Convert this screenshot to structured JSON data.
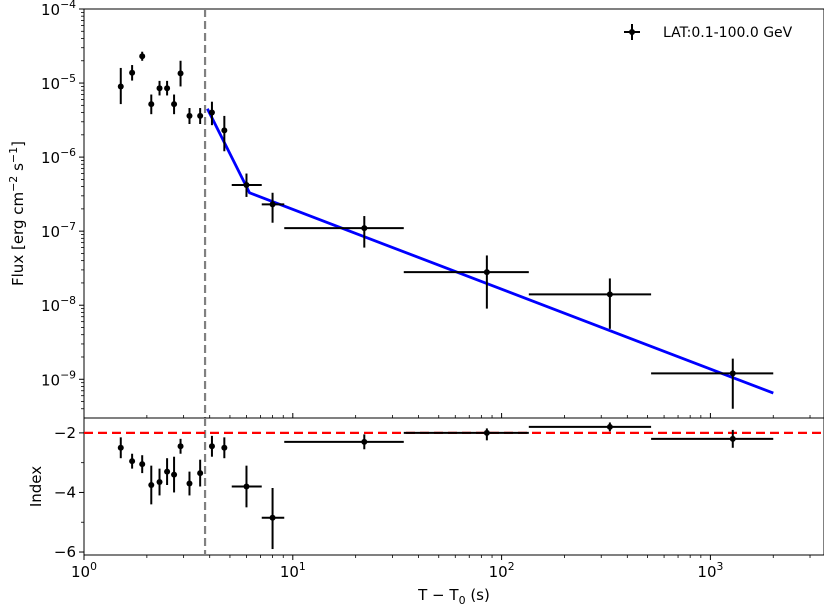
{
  "chart_data": [
    {
      "type": "scatter",
      "panel": "top",
      "ylabel_parts": [
        "Flux [erg cm",
        "−2",
        " s",
        "−1",
        "]"
      ],
      "xscale": "log",
      "yscale": "log",
      "xlim": [
        1,
        3500
      ],
      "ylim": [
        3e-10,
        0.0001
      ],
      "y_tick_labels": [
        {
          "value": 0.0001,
          "base": "10",
          "exp": "−4"
        },
        {
          "value": 1e-05,
          "base": "10",
          "exp": "−5"
        },
        {
          "value": 1e-06,
          "base": "10",
          "exp": "−6"
        },
        {
          "value": 1e-07,
          "base": "10",
          "exp": "−7"
        },
        {
          "value": 1e-08,
          "base": "10",
          "exp": "−8"
        },
        {
          "value": 1e-09,
          "base": "10",
          "exp": "−9"
        }
      ],
      "legend": {
        "label": "LAT:0.1-100.0 GeV",
        "placement": "top-right"
      },
      "vline": {
        "x": 3.8,
        "color": "#808080",
        "style": "dashed"
      },
      "series": [
        {
          "name": "LAT:0.1-100.0 GeV",
          "color": "#000000",
          "points": [
            {
              "x": 1.5,
              "y": 9e-06,
              "ylo": 5.2e-06,
              "yhi": 1.6e-05
            },
            {
              "x": 1.7,
              "y": 1.38e-05,
              "ylo": 1.08e-05,
              "yhi": 1.75e-05
            },
            {
              "x": 1.9,
              "y": 2.3e-05,
              "ylo": 2e-05,
              "yhi": 2.65e-05
            },
            {
              "x": 2.1,
              "y": 5.2e-06,
              "ylo": 3.8e-06,
              "yhi": 7e-06
            },
            {
              "x": 2.3,
              "y": 8.5e-06,
              "ylo": 6.8e-06,
              "yhi": 1.07e-05
            },
            {
              "x": 2.5,
              "y": 8.5e-06,
              "ylo": 6.8e-06,
              "yhi": 1.07e-05
            },
            {
              "x": 2.7,
              "y": 5.2e-06,
              "ylo": 3.8e-06,
              "yhi": 7e-06
            },
            {
              "x": 2.9,
              "y": 1.35e-05,
              "ylo": 9e-06,
              "yhi": 2e-05
            },
            {
              "x": 3.2,
              "y": 3.6e-06,
              "ylo": 2.8e-06,
              "yhi": 4.6e-06
            },
            {
              "x": 3.6,
              "y": 3.6e-06,
              "ylo": 2.8e-06,
              "yhi": 4.6e-06
            },
            {
              "x": 4.1,
              "y": 4e-06,
              "ylo": 2.7e-06,
              "yhi": 5.6e-06
            },
            {
              "x": 4.7,
              "y": 2.3e-06,
              "ylo": 1.2e-06,
              "yhi": 3.6e-06
            },
            {
              "x": 6.0,
              "y": 4.2e-07,
              "ylo": 2.9e-07,
              "yhi": 6e-07,
              "xlo": 5.1,
              "xhi": 7.1
            },
            {
              "x": 8.0,
              "y": 2.3e-07,
              "ylo": 1.3e-07,
              "yhi": 3.3e-07,
              "xlo": 7.1,
              "xhi": 9.1
            },
            {
              "x": 22,
              "y": 1.1e-07,
              "ylo": 6e-08,
              "yhi": 1.6e-07,
              "xlo": 9.1,
              "xhi": 34
            },
            {
              "x": 85,
              "y": 2.8e-08,
              "ylo": 9e-09,
              "yhi": 4.7e-08,
              "xlo": 34,
              "xhi": 135
            },
            {
              "x": 330,
              "y": 1.4e-08,
              "ylo": 4.8e-09,
              "yhi": 2.3e-08,
              "xlo": 135,
              "xhi": 520
            },
            {
              "x": 1280,
              "y": 1.2e-09,
              "ylo": 4e-10,
              "yhi": 1.9e-09,
              "xlo": 520,
              "xhi": 2000
            }
          ]
        },
        {
          "type": "line",
          "color": "#0000ff",
          "points": [
            {
              "x": 3.9,
              "y": 4.5e-06
            },
            {
              "x": 6.2,
              "y": 3.3e-07
            },
            {
              "x": 2000,
              "y": 6.5e-10
            }
          ]
        }
      ]
    },
    {
      "type": "scatter",
      "panel": "bottom",
      "xlabel_parts": [
        "T − T",
        "0",
        " (s)"
      ],
      "ylabel": "Index",
      "xscale": "log",
      "xlim": [
        1,
        3500
      ],
      "ylim": [
        -6.1,
        -1.5
      ],
      "x_tick_labels": [
        {
          "value": 1,
          "base": "10",
          "exp": "0"
        },
        {
          "value": 10,
          "base": "10",
          "exp": "1"
        },
        {
          "value": 100,
          "base": "10",
          "exp": "2"
        },
        {
          "value": 1000,
          "base": "10",
          "exp": "3"
        }
      ],
      "y_tick_labels": [
        {
          "value": -2,
          "label": "−2"
        },
        {
          "value": -4,
          "label": "−4"
        },
        {
          "value": -6,
          "label": "−6"
        }
      ],
      "vline": {
        "x": 3.8,
        "color": "#808080",
        "style": "dashed"
      },
      "hline": {
        "y": -2,
        "color": "#ff0000",
        "style": "dashed"
      },
      "series": [
        {
          "color": "#000000",
          "points": [
            {
              "x": 1.5,
              "y": -2.5,
              "ylo": -2.85,
              "yhi": -2.15
            },
            {
              "x": 1.7,
              "y": -2.95,
              "ylo": -3.2,
              "yhi": -2.7
            },
            {
              "x": 1.9,
              "y": -3.05,
              "ylo": -3.35,
              "yhi": -2.75
            },
            {
              "x": 2.1,
              "y": -3.75,
              "ylo": -4.4,
              "yhi": -3.1
            },
            {
              "x": 2.3,
              "y": -3.65,
              "ylo": -4.1,
              "yhi": -3.2
            },
            {
              "x": 2.5,
              "y": -3.3,
              "ylo": -3.75,
              "yhi": -2.85
            },
            {
              "x": 2.7,
              "y": -3.4,
              "ylo": -4.0,
              "yhi": -2.8
            },
            {
              "x": 2.9,
              "y": -2.45,
              "ylo": -2.7,
              "yhi": -2.2
            },
            {
              "x": 3.2,
              "y": -3.7,
              "ylo": -4.1,
              "yhi": -3.3
            },
            {
              "x": 3.6,
              "y": -3.35,
              "ylo": -3.8,
              "yhi": -2.9
            },
            {
              "x": 4.1,
              "y": -2.45,
              "ylo": -2.8,
              "yhi": -2.1
            },
            {
              "x": 4.7,
              "y": -2.5,
              "ylo": -2.85,
              "yhi": -2.15
            },
            {
              "x": 6.0,
              "y": -3.8,
              "ylo": -4.5,
              "yhi": -3.1,
              "xlo": 5.1,
              "xhi": 7.1
            },
            {
              "x": 8.0,
              "y": -4.85,
              "ylo": -5.9,
              "yhi": -3.85,
              "xlo": 7.1,
              "xhi": 9.1
            },
            {
              "x": 22,
              "y": -2.3,
              "ylo": -2.55,
              "yhi": -2.05,
              "xlo": 9.1,
              "xhi": 34
            },
            {
              "x": 85,
              "y": -2.0,
              "ylo": -2.25,
              "yhi": -1.85,
              "xlo": 34,
              "xhi": 135
            },
            {
              "x": 330,
              "y": -1.8,
              "ylo": -1.95,
              "yhi": -1.65,
              "xlo": 135,
              "xhi": 520
            },
            {
              "x": 1280,
              "y": -2.2,
              "ylo": -2.5,
              "yhi": -1.9,
              "xlo": 520,
              "xhi": 2000
            }
          ]
        }
      ]
    }
  ]
}
